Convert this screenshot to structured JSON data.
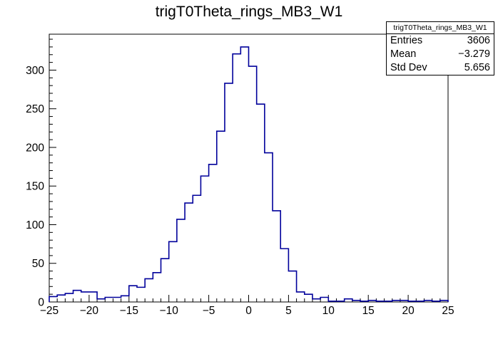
{
  "title": "trigT0Theta_rings_MB3_W1",
  "stats": {
    "title": "trigT0Theta_rings_MB3_W1",
    "rows": [
      {
        "label": "Entries",
        "value": "3606"
      },
      {
        "label": "Mean",
        "value": "−3.279"
      },
      {
        "label": "Std Dev",
        "value": "5.656"
      }
    ]
  },
  "chart_data": {
    "type": "bar",
    "style": "root-step-histogram",
    "title": "trigT0Theta_rings_MB3_W1",
    "xlabel": "",
    "ylabel": "",
    "xlim": [
      -25,
      25
    ],
    "ylim": [
      0,
      346.5
    ],
    "bin_start": -25,
    "bin_width": 1,
    "values": [
      7,
      9,
      11,
      15,
      13,
      13,
      4,
      6,
      6,
      8,
      21,
      19,
      30,
      38,
      56,
      78,
      107,
      128,
      138,
      163,
      178,
      221,
      283,
      321,
      330,
      305,
      256,
      193,
      118,
      69,
      40,
      13,
      10,
      4,
      6,
      1,
      1,
      4,
      2,
      1,
      2,
      1,
      1,
      2,
      2,
      1,
      1,
      2,
      1,
      2
    ],
    "xticks": {
      "values": [
        -25,
        -20,
        -15,
        -10,
        -5,
        0,
        5,
        10,
        15,
        20,
        25
      ],
      "labels": [
        "−25",
        "−20",
        "−15",
        "−10",
        "−5",
        "0",
        "5",
        "10",
        "15",
        "20",
        "25"
      ]
    },
    "yticks": {
      "values": [
        0,
        50,
        100,
        150,
        200,
        250,
        300
      ],
      "labels": [
        "0",
        "50",
        "100",
        "150",
        "200",
        "250",
        "300"
      ]
    },
    "x_minor_step": 1,
    "y_minor_step": 10,
    "grid": false,
    "legend": false,
    "line_color": "#00009b",
    "axis_color": "#000000",
    "background_color": "#ffffff"
  }
}
